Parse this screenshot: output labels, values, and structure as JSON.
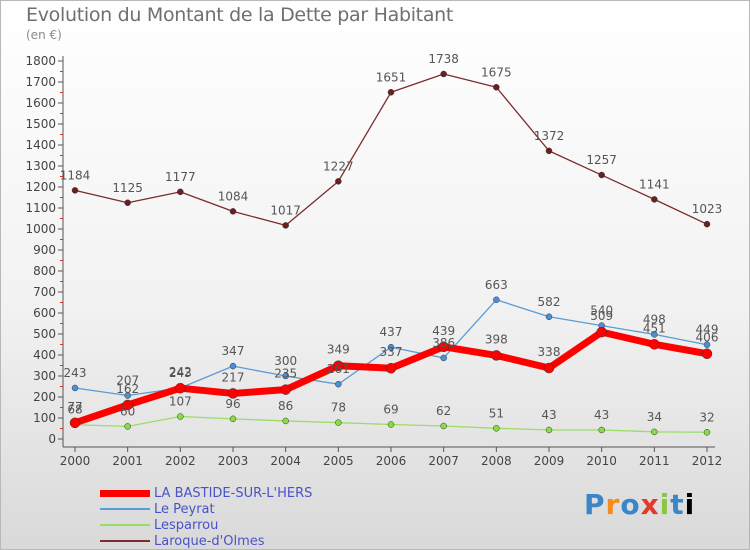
{
  "title": "Evolution du Montant de la Dette par Habitant",
  "subtitle": "(en €)",
  "brand": "Proxiti",
  "chart_data": {
    "type": "line",
    "x": [
      "2000",
      "2001",
      "2002",
      "2003",
      "2004",
      "2005",
      "2006",
      "2007",
      "2008",
      "2009",
      "2010",
      "2011",
      "2012"
    ],
    "ylim": [
      0,
      1800
    ],
    "yticks": [
      0,
      100,
      200,
      300,
      400,
      500,
      600,
      700,
      800,
      900,
      1000,
      1100,
      1200,
      1300,
      1400,
      1500,
      1600,
      1700,
      1800
    ],
    "grid": false,
    "legend_position": "bottom-left",
    "series": [
      {
        "name": "LA BASTIDE-SUR-L'HERS",
        "color": "#ff0000",
        "values": [
          77,
          162,
          242,
          217,
          235,
          349,
          337,
          439,
          398,
          338,
          509,
          451,
          406
        ]
      },
      {
        "name": "Le Peyrat",
        "color": "#5b9bd5",
        "values": [
          243,
          207,
          243,
          347,
          300,
          261,
          437,
          386,
          663,
          582,
          540,
          498,
          449
        ]
      },
      {
        "name": "Lesparrou",
        "color": "#99dd66",
        "values": [
          68,
          60,
          107,
          96,
          86,
          78,
          69,
          62,
          51,
          43,
          43,
          34,
          32
        ]
      },
      {
        "name": "Laroque-d'Olmes",
        "color": "#7b2c2c",
        "values": [
          1184,
          1125,
          1177,
          1084,
          1017,
          1227,
          1651,
          1738,
          1675,
          1372,
          1257,
          1141,
          1023
        ]
      }
    ]
  }
}
